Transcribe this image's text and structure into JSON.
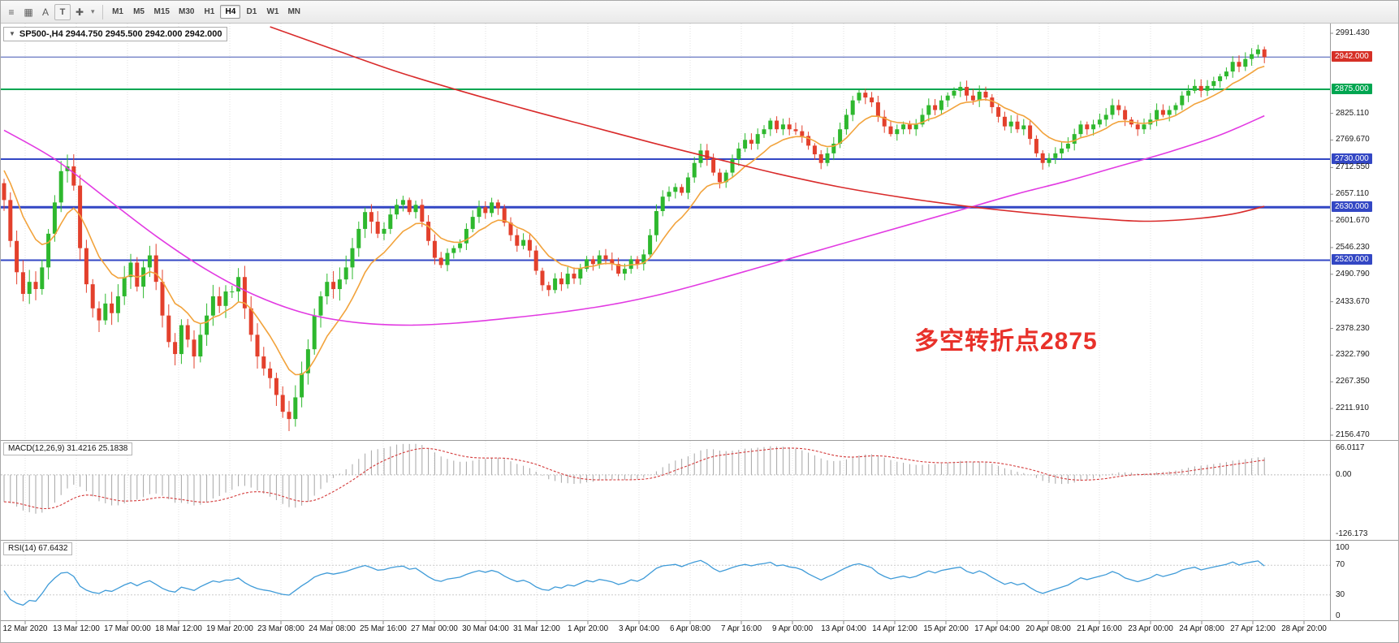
{
  "toolbar": {
    "icons": [
      {
        "name": "menu-icon",
        "glyph": "≡"
      },
      {
        "name": "chart-type-icon",
        "glyph": "▦"
      },
      {
        "name": "text-label-icon",
        "glyph": "A"
      },
      {
        "name": "template-icon",
        "glyph": "T"
      },
      {
        "name": "crosshair-icon",
        "glyph": "✚"
      },
      {
        "name": "dropdown-arrow-icon",
        "glyph": "▾"
      }
    ],
    "timeframes": [
      {
        "label": "M1",
        "active": false
      },
      {
        "label": "M5",
        "active": false
      },
      {
        "label": "M15",
        "active": false
      },
      {
        "label": "M30",
        "active": false
      },
      {
        "label": "H1",
        "active": false
      },
      {
        "label": "H4",
        "active": true
      },
      {
        "label": "D1",
        "active": false
      },
      {
        "label": "W1",
        "active": false
      },
      {
        "label": "MN",
        "active": false
      }
    ]
  },
  "chart": {
    "symbol_box_arrow": "▼",
    "symbol_line": "SP500-,H4 2944.750 2945.500 2942.000 2942.000",
    "annotation": {
      "text": "多空转折点2875",
      "color": "#e8312a"
    },
    "price_axis_labels": [
      {
        "text": "2991.430",
        "price": 2991.43,
        "style": "plain"
      },
      {
        "text": "2942.000",
        "price": 2942.0,
        "style": "red"
      },
      {
        "text": "2875.000",
        "price": 2875.0,
        "style": "green"
      },
      {
        "text": "2825.110",
        "price": 2825.11,
        "style": "plain"
      },
      {
        "text": "2769.670",
        "price": 2769.67,
        "style": "plain"
      },
      {
        "text": "2730.000",
        "price": 2730.0,
        "style": "blue"
      },
      {
        "text": "2712.550",
        "price": 2712.55,
        "style": "plain"
      },
      {
        "text": "2657.110",
        "price": 2657.11,
        "style": "plain"
      },
      {
        "text": "2630.000",
        "price": 2630.0,
        "style": "blue"
      },
      {
        "text": "2601.670",
        "price": 2601.67,
        "style": "plain"
      },
      {
        "text": "2546.230",
        "price": 2546.23,
        "style": "plain"
      },
      {
        "text": "2520.000",
        "price": 2520.0,
        "style": "blue"
      },
      {
        "text": "2490.790",
        "price": 2490.79,
        "style": "plain"
      },
      {
        "text": "2433.670",
        "price": 2433.67,
        "style": "plain"
      },
      {
        "text": "2378.230",
        "price": 2378.23,
        "style": "plain"
      },
      {
        "text": "2322.790",
        "price": 2322.79,
        "style": "plain"
      },
      {
        "text": "2267.350",
        "price": 2267.35,
        "style": "plain"
      },
      {
        "text": "2211.910",
        "price": 2211.91,
        "style": "plain"
      },
      {
        "text": "2156.470",
        "price": 2156.47,
        "style": "plain"
      }
    ]
  },
  "macd": {
    "label": "MACD(12,26,9) 31.4216 25.1838",
    "axis": [
      {
        "text": "66.0117",
        "value": 66.0117
      },
      {
        "text": "0.00",
        "value": 0
      },
      {
        "text": "-126.173",
        "value": -126.173
      }
    ]
  },
  "rsi": {
    "label": "RSI(14) 67.6432",
    "axis": [
      {
        "text": "100",
        "value": 100
      },
      {
        "text": "70",
        "value": 70
      },
      {
        "text": "30",
        "value": 30
      },
      {
        "text": "0",
        "value": 0
      }
    ]
  },
  "time_axis": {
    "labels": [
      "12 Mar 2020",
      "13 Mar 12:00",
      "17 Mar 00:00",
      "18 Mar 12:00",
      "19 Mar 20:00",
      "23 Mar 08:00",
      "24 Mar 08:00",
      "25 Mar 16:00",
      "27 Mar 00:00",
      "30 Mar 04:00",
      "31 Mar 12:00",
      "1 Apr 20:00",
      "3 Apr 04:00",
      "6 Apr 08:00",
      "7 Apr 16:00",
      "9 Apr 00:00",
      "13 Apr 04:00",
      "14 Apr 12:00",
      "15 Apr 20:00",
      "17 Apr 04:00",
      "20 Apr 08:00",
      "21 Apr 16:00",
      "23 Apr 00:00",
      "24 Apr 08:00",
      "27 Apr 12:00",
      "28 Apr 20:00"
    ]
  },
  "chart_data": {
    "type": "candlestick",
    "symbol": "SP500-",
    "timeframe": "H4",
    "current_ohlc": {
      "open": 2944.75,
      "high": 2945.5,
      "low": 2942.0,
      "close": 2942.0
    },
    "ylim": [
      2156.47,
      2991.43
    ],
    "up_color": "#2eb82e",
    "down_color": "#e3402c",
    "first_open": 2680,
    "closes": [
      2645,
      2560,
      2495,
      2450,
      2475,
      2460,
      2505,
      2575,
      2640,
      2705,
      2715,
      2675,
      2545,
      2470,
      2420,
      2395,
      2430,
      2410,
      2445,
      2485,
      2515,
      2465,
      2505,
      2530,
      2475,
      2405,
      2350,
      2325,
      2385,
      2355,
      2320,
      2365,
      2405,
      2445,
      2425,
      2455,
      2455,
      2485,
      2420,
      2365,
      2320,
      2295,
      2275,
      2240,
      2205,
      2190,
      2235,
      2285,
      2335,
      2405,
      2445,
      2475,
      2460,
      2480,
      2505,
      2545,
      2585,
      2620,
      2600,
      2575,
      2585,
      2615,
      2635,
      2645,
      2620,
      2635,
      2600,
      2560,
      2525,
      2510,
      2535,
      2545,
      2555,
      2585,
      2610,
      2630,
      2618,
      2640,
      2628,
      2598,
      2572,
      2550,
      2562,
      2540,
      2498,
      2468,
      2458,
      2482,
      2470,
      2492,
      2482,
      2502,
      2522,
      2512,
      2530,
      2522,
      2512,
      2492,
      2502,
      2522,
      2512,
      2532,
      2572,
      2622,
      2652,
      2662,
      2672,
      2660,
      2692,
      2722,
      2748,
      2730,
      2702,
      2682,
      2702,
      2730,
      2752,
      2770,
      2762,
      2782,
      2792,
      2810,
      2792,
      2802,
      2792,
      2788,
      2778,
      2758,
      2740,
      2722,
      2742,
      2762,
      2792,
      2822,
      2852,
      2868,
      2858,
      2848,
      2818,
      2798,
      2782,
      2792,
      2802,
      2792,
      2802,
      2822,
      2842,
      2832,
      2852,
      2862,
      2872,
      2880,
      2862,
      2852,
      2870,
      2858,
      2838,
      2818,
      2798,
      2808,
      2792,
      2800,
      2772,
      2742,
      2722,
      2732,
      2742,
      2752,
      2762,
      2782,
      2802,
      2792,
      2802,
      2812,
      2822,
      2842,
      2832,
      2812,
      2802,
      2792,
      2802,
      2812,
      2832,
      2822,
      2832,
      2842,
      2862,
      2872,
      2882,
      2872,
      2882,
      2892,
      2902,
      2912,
      2932,
      2922,
      2938,
      2948,
      2958,
      2942
    ],
    "moving_averages": [
      {
        "name": "ma-fast-orange",
        "color": "#f2a33c",
        "type": "ema",
        "period": 10,
        "seed": 2720
      },
      {
        "name": "ma-mid-magenta",
        "color": "#e23ae2",
        "type": "anchors",
        "points": [
          [
            0,
            2790
          ],
          [
            8,
            2730
          ],
          [
            16,
            2650
          ],
          [
            24,
            2570
          ],
          [
            32,
            2500
          ],
          [
            40,
            2445
          ],
          [
            48,
            2408
          ],
          [
            56,
            2390
          ],
          [
            64,
            2385
          ],
          [
            72,
            2390
          ],
          [
            80,
            2400
          ],
          [
            88,
            2412
          ],
          [
            96,
            2428
          ],
          [
            104,
            2450
          ],
          [
            112,
            2478
          ],
          [
            120,
            2508
          ],
          [
            128,
            2538
          ],
          [
            136,
            2568
          ],
          [
            144,
            2598
          ],
          [
            152,
            2628
          ],
          [
            160,
            2658
          ],
          [
            168,
            2685
          ],
          [
            176,
            2715
          ],
          [
            184,
            2745
          ],
          [
            192,
            2780
          ],
          [
            199,
            2820
          ]
        ]
      },
      {
        "name": "ma-slow-red",
        "color": "#d92b2b",
        "type": "anchors",
        "points": [
          [
            42,
            3005
          ],
          [
            52,
            2958
          ],
          [
            62,
            2912
          ],
          [
            72,
            2872
          ],
          [
            82,
            2835
          ],
          [
            92,
            2800
          ],
          [
            102,
            2765
          ],
          [
            112,
            2732
          ],
          [
            122,
            2700
          ],
          [
            132,
            2672
          ],
          [
            142,
            2650
          ],
          [
            152,
            2632
          ],
          [
            162,
            2618
          ],
          [
            172,
            2607
          ],
          [
            180,
            2601
          ],
          [
            188,
            2606
          ],
          [
            194,
            2616
          ],
          [
            199,
            2632
          ]
        ]
      }
    ],
    "hlines": [
      {
        "price": 2942.0,
        "color": "#4056b4",
        "width": 1
      },
      {
        "price": 2875.0,
        "color": "#00a651",
        "width": 2
      },
      {
        "price": 2730.0,
        "color": "#3347c4",
        "width": 2
      },
      {
        "price": 2630.0,
        "color": "#3347c4",
        "width": 3
      },
      {
        "price": 2520.0,
        "color": "#3347c4",
        "width": 2
      }
    ],
    "macd": {
      "fast": 12,
      "slow": 26,
      "signal": 9,
      "current": 31.4216,
      "current_signal": 25.1838,
      "range": [
        -126.173,
        66.0117
      ],
      "seed_offset": 60,
      "signal_seed": -55,
      "histogram_color": "#a6a6a6",
      "signal_color": "#d43a3a"
    },
    "rsi": {
      "period": 14,
      "current": 67.6432,
      "range": [
        0,
        100
      ],
      "levels": [
        70,
        30
      ],
      "color": "#3f9bd8",
      "seed_gain": 5,
      "seed_loss": 9
    }
  }
}
